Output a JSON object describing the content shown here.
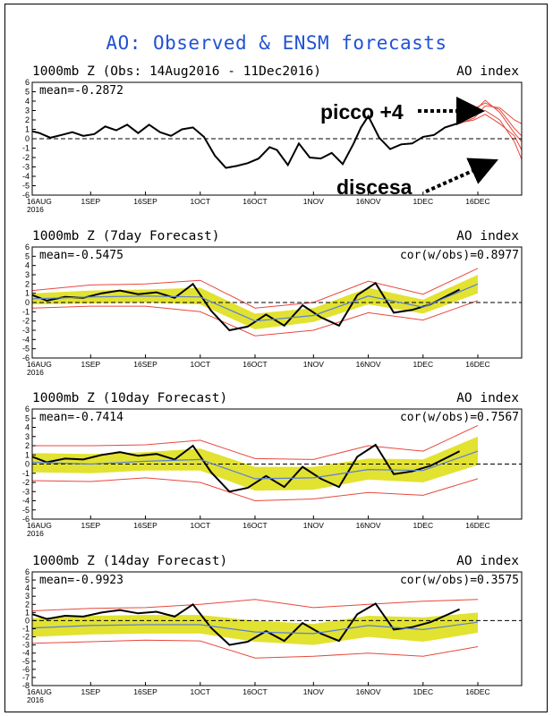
{
  "figure": {
    "title": "AO: Observed & ENSM forecasts",
    "colors": {
      "title": "#2052d6",
      "observed": "#000000",
      "ensemble_members": "#e8483c",
      "spread_band": "#e2e231",
      "ensemble_mean": "#5b7fd8",
      "zero_line": "#000000"
    }
  },
  "annotations": {
    "peak_label": "picco +4",
    "descent_label": "discesa"
  },
  "chart_data": [
    {
      "type": "line",
      "title": "1000mb Z (Obs: 14Aug2016 - 11Dec2016)",
      "index_label": "AO index",
      "stat_label": "mean=-0.2872",
      "corr_label": "",
      "xlim": [
        "2016-08-16",
        "2016-12-28"
      ],
      "ylim": [
        -6,
        6
      ],
      "xtick_labels": [
        "16AUG\n2016",
        "1SEP",
        "16SEP",
        "1OCT",
        "16OCT",
        "1NOV",
        "16NOV",
        "1DEC",
        "16DEC"
      ],
      "ytick_labels": [
        "6",
        "5",
        "4",
        "3",
        "2",
        "1",
        "0",
        "-1",
        "-2",
        "-3",
        "-4",
        "-5",
        "-6"
      ],
      "series": [
        {
          "role": "observed",
          "x": [
            "2016-08-16",
            "2016-08-18",
            "2016-08-21",
            "2016-08-24",
            "2016-08-27",
            "2016-08-30",
            "2016-09-02",
            "2016-09-05",
            "2016-09-08",
            "2016-09-11",
            "2016-09-14",
            "2016-09-17",
            "2016-09-20",
            "2016-09-23",
            "2016-09-26",
            "2016-09-29",
            "2016-10-02",
            "2016-10-05",
            "2016-10-08",
            "2016-10-11",
            "2016-10-14",
            "2016-10-17",
            "2016-10-20",
            "2016-10-22",
            "2016-10-25",
            "2016-10-28",
            "2016-10-31",
            "2016-11-03",
            "2016-11-06",
            "2016-11-09",
            "2016-11-12",
            "2016-11-14",
            "2016-11-16",
            "2016-11-19",
            "2016-11-22",
            "2016-11-25",
            "2016-11-28",
            "2016-12-01",
            "2016-12-04",
            "2016-12-07",
            "2016-12-11"
          ],
          "values": [
            0.8,
            0.6,
            0.1,
            0.4,
            0.7,
            0.3,
            0.5,
            1.3,
            0.9,
            1.5,
            0.6,
            1.5,
            0.7,
            0.3,
            1.0,
            1.2,
            0.2,
            -1.8,
            -3.1,
            -2.9,
            -2.6,
            -2.1,
            -0.9,
            -1.2,
            -2.8,
            -0.5,
            -2.0,
            -2.1,
            -1.5,
            -2.7,
            -0.5,
            1.2,
            2.4,
            0.1,
            -1.1,
            -0.6,
            -0.5,
            0.2,
            0.4,
            1.2,
            1.7
          ]
        }
      ],
      "members": [
        {
          "x": [
            "2016-12-11",
            "2016-12-15",
            "2016-12-18",
            "2016-12-22",
            "2016-12-26",
            "2016-12-28"
          ],
          "values": [
            1.8,
            2.9,
            4.1,
            2.8,
            0.6,
            -0.3
          ]
        },
        {
          "x": [
            "2016-12-11",
            "2016-12-15",
            "2016-12-18",
            "2016-12-22",
            "2016-12-26",
            "2016-12-28"
          ],
          "values": [
            1.6,
            2.2,
            3.5,
            3.3,
            2.0,
            1.6
          ]
        },
        {
          "x": [
            "2016-12-11",
            "2016-12-15",
            "2016-12-18",
            "2016-12-22",
            "2016-12-26",
            "2016-12-28"
          ],
          "values": [
            1.7,
            2.0,
            2.6,
            1.6,
            0.3,
            -1.2
          ]
        },
        {
          "x": [
            "2016-12-11",
            "2016-12-15",
            "2016-12-18",
            "2016-12-22",
            "2016-12-26",
            "2016-12-28"
          ],
          "values": [
            1.7,
            2.6,
            3.0,
            2.0,
            -0.3,
            -2.2
          ]
        },
        {
          "x": [
            "2016-12-11",
            "2016-12-15",
            "2016-12-18",
            "2016-12-22",
            "2016-12-26",
            "2016-12-28"
          ],
          "values": [
            1.8,
            3.2,
            3.8,
            3.1,
            1.1,
            0.3
          ]
        }
      ]
    },
    {
      "type": "line",
      "title": "1000mb Z (7day Forecast)",
      "index_label": "AO index",
      "stat_label": "mean=-0.5475",
      "corr_label": "cor(w/obs)=0.8977",
      "xlim": [
        "2016-08-16",
        "2016-12-28"
      ],
      "ylim": [
        -6,
        6
      ],
      "xtick_labels": [
        "16AUG\n2016",
        "1SEP",
        "16SEP",
        "1OCT",
        "16OCT",
        "1NOV",
        "16NOV",
        "1DEC",
        "16DEC"
      ],
      "ytick_labels": [
        "6",
        "5",
        "4",
        "3",
        "2",
        "1",
        "0",
        "-1",
        "-2",
        "-3",
        "-4",
        "-5",
        "-6"
      ],
      "series": [
        {
          "role": "observed",
          "x": [
            "2016-08-16",
            "2016-08-20",
            "2016-08-25",
            "2016-08-30",
            "2016-09-04",
            "2016-09-09",
            "2016-09-14",
            "2016-09-19",
            "2016-09-24",
            "2016-09-29",
            "2016-10-04",
            "2016-10-09",
            "2016-10-14",
            "2016-10-19",
            "2016-10-24",
            "2016-10-29",
            "2016-11-03",
            "2016-11-08",
            "2016-11-13",
            "2016-11-18",
            "2016-11-23",
            "2016-11-28",
            "2016-12-03",
            "2016-12-08",
            "2016-12-11"
          ],
          "values": [
            0.8,
            0.2,
            0.6,
            0.5,
            1.0,
            1.3,
            0.9,
            1.1,
            0.5,
            2.0,
            -0.9,
            -3.0,
            -2.6,
            -1.3,
            -2.5,
            -0.3,
            -1.6,
            -2.5,
            0.8,
            2.1,
            -1.1,
            -0.8,
            -0.2,
            0.8,
            1.4
          ]
        },
        {
          "role": "ensemble_mean",
          "x": [
            "2016-08-16",
            "2016-09-01",
            "2016-09-16",
            "2016-10-01",
            "2016-10-16",
            "2016-11-01",
            "2016-11-16",
            "2016-12-01",
            "2016-12-16"
          ],
          "values": [
            0.4,
            0.6,
            0.7,
            0.6,
            -2.0,
            -1.4,
            0.7,
            -0.5,
            2.0
          ]
        }
      ],
      "spread": {
        "x": [
          "2016-08-16",
          "2016-09-01",
          "2016-09-16",
          "2016-10-01",
          "2016-10-16",
          "2016-11-01",
          "2016-11-16",
          "2016-12-01",
          "2016-12-16"
        ],
        "lower": [
          -0.2,
          -0.1,
          0.0,
          -0.2,
          -2.9,
          -2.1,
          -0.2,
          -1.2,
          1.0
        ],
        "upper": [
          1.0,
          1.3,
          1.4,
          1.6,
          -1.2,
          -0.6,
          1.6,
          0.3,
          3.0
        ]
      },
      "members": [
        {
          "x": [
            "2016-08-16",
            "2016-09-01",
            "2016-09-16",
            "2016-10-01",
            "2016-10-16",
            "2016-11-01",
            "2016-11-16",
            "2016-12-01",
            "2016-12-16"
          ],
          "values": [
            -0.6,
            -0.4,
            -0.4,
            -1.0,
            -3.6,
            -3.0,
            -1.1,
            -1.9,
            0.2
          ]
        },
        {
          "x": [
            "2016-08-16",
            "2016-09-01",
            "2016-09-16",
            "2016-10-01",
            "2016-10-16",
            "2016-11-01",
            "2016-11-16",
            "2016-12-01",
            "2016-12-16"
          ],
          "values": [
            1.3,
            1.9,
            2.0,
            2.4,
            -0.6,
            0.0,
            2.3,
            0.9,
            3.7
          ]
        }
      ]
    },
    {
      "type": "line",
      "title": "1000mb Z (10day Forecast)",
      "index_label": "AO index",
      "stat_label": "mean=-0.7414",
      "corr_label": "cor(w/obs)=0.7567",
      "xlim": [
        "2016-08-16",
        "2016-12-28"
      ],
      "ylim": [
        -6,
        6
      ],
      "xtick_labels": [
        "16AUG\n2016",
        "1SEP",
        "16SEP",
        "1OCT",
        "16OCT",
        "1NOV",
        "16NOV",
        "1DEC",
        "16DEC"
      ],
      "ytick_labels": [
        "6",
        "5",
        "4",
        "3",
        "2",
        "1",
        "0",
        "-1",
        "-2",
        "-3",
        "-4",
        "-5",
        "-6"
      ],
      "series": [
        {
          "role": "observed",
          "x": [
            "2016-08-16",
            "2016-08-20",
            "2016-08-25",
            "2016-08-30",
            "2016-09-04",
            "2016-09-09",
            "2016-09-14",
            "2016-09-19",
            "2016-09-24",
            "2016-09-29",
            "2016-10-04",
            "2016-10-09",
            "2016-10-14",
            "2016-10-19",
            "2016-10-24",
            "2016-10-29",
            "2016-11-03",
            "2016-11-08",
            "2016-11-13",
            "2016-11-18",
            "2016-11-23",
            "2016-11-28",
            "2016-12-03",
            "2016-12-08",
            "2016-12-11"
          ],
          "values": [
            0.8,
            0.2,
            0.6,
            0.5,
            1.0,
            1.3,
            0.9,
            1.1,
            0.5,
            2.0,
            -0.9,
            -3.0,
            -2.6,
            -1.3,
            -2.5,
            -0.3,
            -1.6,
            -2.5,
            0.8,
            2.1,
            -1.1,
            -0.8,
            -0.2,
            0.8,
            1.4
          ]
        },
        {
          "role": "ensemble_mean",
          "x": [
            "2016-08-16",
            "2016-09-01",
            "2016-09-16",
            "2016-10-01",
            "2016-10-16",
            "2016-11-01",
            "2016-11-16",
            "2016-12-01",
            "2016-12-16"
          ],
          "values": [
            0.2,
            0.0,
            0.3,
            0.5,
            -1.6,
            -1.5,
            -0.6,
            -0.7,
            1.4
          ]
        }
      ],
      "spread": {
        "x": [
          "2016-08-16",
          "2016-09-01",
          "2016-09-16",
          "2016-10-01",
          "2016-10-16",
          "2016-11-01",
          "2016-11-16",
          "2016-12-01",
          "2016-12-16"
        ],
        "lower": [
          -0.9,
          -1.0,
          -0.7,
          -0.7,
          -2.9,
          -2.8,
          -1.7,
          -2.0,
          -0.1
        ],
        "upper": [
          1.2,
          1.1,
          1.3,
          1.7,
          -0.3,
          -0.3,
          0.6,
          0.5,
          3.0
        ]
      },
      "members": [
        {
          "x": [
            "2016-08-16",
            "2016-09-01",
            "2016-09-16",
            "2016-10-01",
            "2016-10-16",
            "2016-11-01",
            "2016-11-16",
            "2016-12-01",
            "2016-12-16"
          ],
          "values": [
            -1.8,
            -1.9,
            -1.5,
            -2.0,
            -4.0,
            -3.8,
            -3.1,
            -3.4,
            -1.6
          ]
        },
        {
          "x": [
            "2016-08-16",
            "2016-09-01",
            "2016-09-16",
            "2016-10-01",
            "2016-10-16",
            "2016-11-01",
            "2016-11-16",
            "2016-12-01",
            "2016-12-16"
          ],
          "values": [
            2.0,
            2.0,
            2.1,
            2.6,
            0.6,
            0.5,
            2.0,
            1.4,
            4.2
          ]
        }
      ]
    },
    {
      "type": "line",
      "title": "1000mb Z (14day Forecast)",
      "index_label": "AO index",
      "stat_label": "mean=-0.9923",
      "corr_label": "cor(w/obs)=0.3575",
      "xlim": [
        "2016-08-16",
        "2016-12-28"
      ],
      "ylim": [
        -8,
        6
      ],
      "xtick_labels": [
        "16AUG\n2016",
        "1SEP",
        "16SEP",
        "1OCT",
        "16OCT",
        "1NOV",
        "16NOV",
        "1DEC",
        "16DEC"
      ],
      "ytick_labels": [
        "6",
        "5",
        "4",
        "3",
        "2",
        "1",
        "0",
        "-1",
        "-2",
        "-3",
        "-4",
        "-5",
        "-6",
        "-7",
        "-8"
      ],
      "series": [
        {
          "role": "observed",
          "x": [
            "2016-08-16",
            "2016-08-20",
            "2016-08-25",
            "2016-08-30",
            "2016-09-04",
            "2016-09-09",
            "2016-09-14",
            "2016-09-19",
            "2016-09-24",
            "2016-09-29",
            "2016-10-04",
            "2016-10-09",
            "2016-10-14",
            "2016-10-19",
            "2016-10-24",
            "2016-10-29",
            "2016-11-03",
            "2016-11-08",
            "2016-11-13",
            "2016-11-18",
            "2016-11-23",
            "2016-11-28",
            "2016-12-03",
            "2016-12-08",
            "2016-12-11"
          ],
          "values": [
            0.8,
            0.2,
            0.6,
            0.5,
            1.0,
            1.3,
            0.9,
            1.1,
            0.5,
            2.0,
            -0.9,
            -3.0,
            -2.6,
            -1.3,
            -2.5,
            -0.3,
            -1.6,
            -2.5,
            0.8,
            2.1,
            -1.1,
            -0.8,
            -0.2,
            0.8,
            1.4
          ]
        },
        {
          "role": "ensemble_mean",
          "x": [
            "2016-08-16",
            "2016-09-01",
            "2016-09-16",
            "2016-10-01",
            "2016-10-16",
            "2016-11-01",
            "2016-11-16",
            "2016-12-01",
            "2016-12-16"
          ],
          "values": [
            -0.9,
            -0.6,
            -0.5,
            -0.5,
            -1.4,
            -1.6,
            -0.6,
            -1.1,
            -0.2
          ]
        }
      ],
      "spread": {
        "x": [
          "2016-08-16",
          "2016-09-01",
          "2016-09-16",
          "2016-10-01",
          "2016-10-16",
          "2016-11-01",
          "2016-11-16",
          "2016-12-01",
          "2016-12-16"
        ],
        "lower": [
          -2.0,
          -1.7,
          -1.6,
          -1.6,
          -2.6,
          -3.0,
          -2.0,
          -2.6,
          -1.5
        ],
        "upper": [
          0.3,
          0.6,
          0.7,
          0.7,
          0.0,
          -0.4,
          0.6,
          0.4,
          1.0
        ]
      },
      "members": [
        {
          "x": [
            "2016-08-16",
            "2016-09-01",
            "2016-09-16",
            "2016-10-01",
            "2016-10-16",
            "2016-11-01",
            "2016-11-16",
            "2016-12-01",
            "2016-12-16"
          ],
          "values": [
            -2.8,
            -2.6,
            -2.4,
            -2.5,
            -4.6,
            -4.4,
            -4.0,
            -4.4,
            -3.2
          ]
        },
        {
          "x": [
            "2016-08-16",
            "2016-09-01",
            "2016-09-16",
            "2016-10-01",
            "2016-10-16",
            "2016-11-01",
            "2016-11-16",
            "2016-12-01",
            "2016-12-16"
          ],
          "values": [
            1.2,
            1.5,
            1.6,
            2.0,
            2.6,
            1.6,
            2.0,
            2.4,
            2.6
          ]
        }
      ]
    }
  ]
}
